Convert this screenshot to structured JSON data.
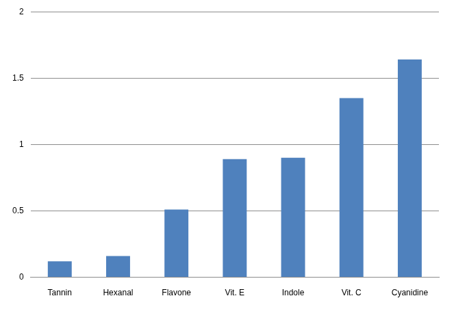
{
  "chart_data": {
    "type": "bar",
    "categories": [
      "Tannin",
      "Hexanal",
      "Flavone",
      "Vit. E",
      "Indole",
      "Vit. C",
      "Cyanidine"
    ],
    "values": [
      0.12,
      0.16,
      0.51,
      0.89,
      0.9,
      1.35,
      1.64
    ],
    "color": "#4f81bd",
    "ylim": [
      0,
      2
    ],
    "yticks": [
      0,
      0.5,
      1,
      1.5,
      2
    ],
    "grid": true
  }
}
